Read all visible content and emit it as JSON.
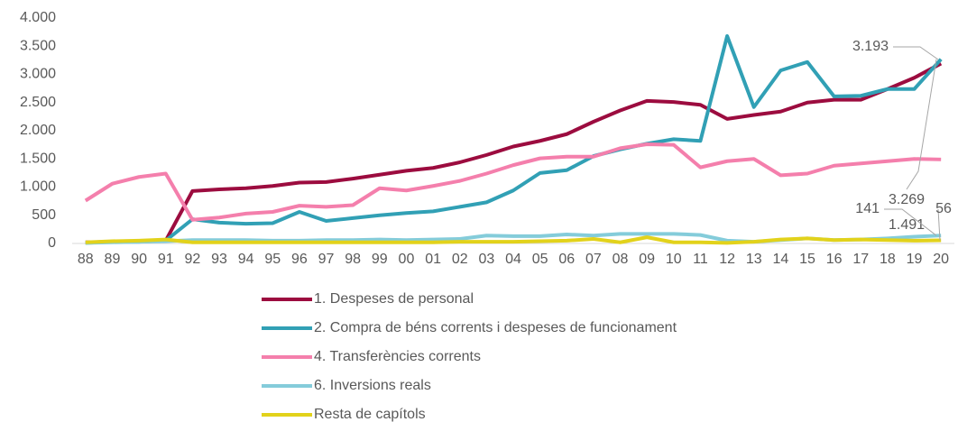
{
  "chart_data": {
    "type": "line",
    "categories": [
      "88",
      "89",
      "90",
      "91",
      "92",
      "93",
      "94",
      "95",
      "96",
      "97",
      "98",
      "99",
      "00",
      "01",
      "02",
      "03",
      "04",
      "05",
      "06",
      "07",
      "08",
      "09",
      "10",
      "11",
      "12",
      "13",
      "14",
      "15",
      "16",
      "17",
      "18",
      "19",
      "20"
    ],
    "ylim": [
      0,
      4000
    ],
    "yticks": [
      0,
      500,
      {
        "value": 1000,
        "label": "1.000"
      },
      {
        "value": 1500,
        "label": "1.500"
      },
      {
        "value": 2000,
        "label": "2.000"
      },
      {
        "value": 2500,
        "label": "2.500"
      },
      {
        "value": 3000,
        "label": "3.000"
      },
      {
        "value": 3500,
        "label": "3.500"
      },
      {
        "value": 4000,
        "label": "4.000"
      }
    ],
    "grid": false,
    "legend": "bottom",
    "series": [
      {
        "name": "1. Despeses de personal",
        "color": "#9c0c3f",
        "values": [
          20,
          30,
          40,
          50,
          930,
          960,
          980,
          1020,
          1080,
          1090,
          1150,
          1220,
          1290,
          1340,
          1440,
          1570,
          1720,
          1820,
          1940,
          2160,
          2360,
          2530,
          2510,
          2460,
          2210,
          2280,
          2340,
          2500,
          2550,
          2550,
          2740,
          2940,
          3193
        ],
        "value_labels": {
          "32": "3.193"
        }
      },
      {
        "name": "2. Compra de béns corrents i despeses de funcionament",
        "color": "#31a0b5",
        "values": [
          10,
          30,
          30,
          50,
          430,
          370,
          350,
          360,
          560,
          400,
          450,
          500,
          540,
          570,
          650,
          730,
          940,
          1250,
          1300,
          1550,
          1670,
          1770,
          1850,
          1820,
          3680,
          2420,
          3070,
          3220,
          2610,
          2620,
          2740,
          2740,
          3269
        ],
        "value_labels": {
          "32": "3.269"
        }
      },
      {
        "name": "4. Transferències corrents",
        "color": "#f47fac",
        "values": [
          760,
          1060,
          1180,
          1240,
          420,
          460,
          530,
          560,
          670,
          650,
          680,
          980,
          940,
          1020,
          1110,
          1240,
          1390,
          1510,
          1540,
          1540,
          1690,
          1760,
          1750,
          1350,
          1460,
          1500,
          1210,
          1240,
          1380,
          1420,
          1460,
          1500,
          1491
        ],
        "value_labels": {
          "32": "1.491"
        }
      },
      {
        "name": "6. Inversions reals",
        "color": "#84ccda",
        "values": [
          10,
          20,
          30,
          40,
          60,
          60,
          60,
          50,
          50,
          60,
          60,
          70,
          60,
          70,
          80,
          140,
          130,
          130,
          160,
          140,
          170,
          170,
          170,
          150,
          50,
          30,
          60,
          90,
          60,
          70,
          90,
          120,
          141
        ],
        "value_labels": {
          "32": "141"
        }
      },
      {
        "name": "Resta de capítols",
        "color": "#e2d21b",
        "values": [
          20,
          40,
          50,
          70,
          20,
          20,
          20,
          20,
          20,
          20,
          20,
          20,
          20,
          20,
          30,
          30,
          30,
          40,
          50,
          80,
          20,
          110,
          20,
          20,
          10,
          30,
          70,
          90,
          60,
          70,
          60,
          50,
          56
        ],
        "value_labels": {
          "32": "56"
        }
      }
    ]
  }
}
